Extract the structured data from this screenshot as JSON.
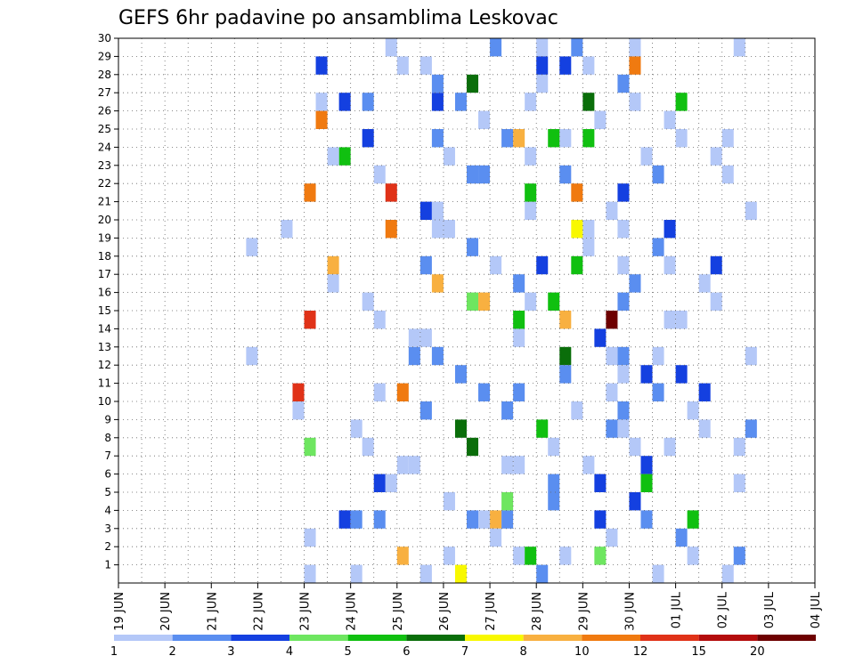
{
  "title": "GEFS 6hr padavine po ansamblima Leskovac",
  "chart_data": {
    "type": "heatmap",
    "title": "GEFS 6hr padavine po ansamblima Leskovac",
    "xlabel": "",
    "ylabel": "",
    "x_tick_labels": [
      "19 JUN",
      "20 JUN",
      "21 JUN",
      "22 JUN",
      "23 JUN",
      "24 JUN",
      "25 JUN",
      "26 JUN",
      "27 JUN",
      "28 JUN",
      "29 JUN",
      "30 JUN",
      "01 JUL",
      "02 JUL",
      "03 JUL",
      "04 JUL"
    ],
    "y_tick_labels": [
      "1",
      "2",
      "3",
      "4",
      "5",
      "6",
      "7",
      "8",
      "9",
      "10",
      "11",
      "12",
      "13",
      "14",
      "15",
      "16",
      "17",
      "18",
      "19",
      "20",
      "21",
      "22",
      "23",
      "24",
      "25",
      "26",
      "27",
      "28",
      "29",
      "30"
    ],
    "x_range": [
      "19 JUN 00Z",
      "04 JUL 00Z"
    ],
    "x_step": "6 hr",
    "members": 30,
    "grid": true,
    "colorbar": {
      "labels": [
        "1",
        "2",
        "3",
        "4",
        "5",
        "6",
        "7",
        "8",
        "10",
        "12",
        "15",
        "20"
      ],
      "colors": [
        "#b4c8f8",
        "#5a8ef0",
        "#1440e0",
        "#6ee660",
        "#10c010",
        "#0a6e0a",
        "#f8f800",
        "#f8b040",
        "#f07a10",
        "#e03218",
        "#b40c0c",
        "#6e0000"
      ]
    },
    "cells_note": "each cell: [time step index from 19 JUN 00Z, member, precipitation class 0-11]",
    "cells": [
      [
        16,
        0,
        0
      ],
      [
        16,
        0,
        3
      ],
      [
        16,
        0,
        9
      ],
      [
        23,
        0,
        9
      ],
      [
        26,
        0,
        0
      ],
      [
        22,
        0,
        2
      ],
      [
        38,
        0,
        5
      ],
      [
        23,
        0,
        8
      ],
      [
        27,
        0,
        2
      ],
      [
        32,
        0,
        7
      ],
      [
        24,
        0,
        8
      ],
      [
        39,
        0,
        4
      ],
      [
        40,
        0,
        4
      ],
      [
        41,
        0,
        3
      ],
      [
        29,
        0,
        5
      ],
      [
        31,
        0,
        7
      ],
      [
        30,
        0,
        1
      ],
      [
        36,
        0,
        0
      ],
      [
        34,
        0,
        0
      ],
      [
        38,
        1,
        7
      ],
      [
        39,
        1,
        8
      ],
      [
        38,
        1,
        2
      ],
      [
        41,
        1,
        2
      ],
      [
        43,
        1,
        1
      ],
      [
        26,
        2,
        2
      ],
      [
        21,
        1,
        1
      ],
      [
        22,
        1,
        1
      ],
      [
        43,
        2,
        0
      ],
      [
        40,
        3,
        0
      ],
      [
        35,
        3,
        0
      ],
      [
        33,
        3,
        1
      ],
      [
        44,
        0,
        0
      ],
      [
        47,
        0,
        0
      ],
      [
        46,
        1,
        1
      ],
      [
        44,
        1,
        0
      ],
      [
        45,
        1,
        2
      ],
      [
        11,
        0,
        0
      ],
      [
        14,
        0,
        0
      ],
      [
        17,
        0,
        0
      ],
      [
        19,
        0,
        2
      ],
      [
        15,
        0,
        9
      ],
      [
        18,
        0,
        7
      ],
      [
        21,
        0,
        2
      ],
      [
        24,
        0,
        7
      ],
      [
        43,
        0,
        0
      ],
      [
        35,
        0,
        0
      ],
      [
        35,
        1,
        0
      ],
      [
        38,
        2,
        0
      ],
      [
        39,
        3,
        0
      ],
      [
        39,
        4,
        0
      ],
      [
        38,
        4,
        0
      ],
      [
        53,
        2,
        0
      ],
      [
        53,
        1,
        0
      ],
      [
        54,
        1,
        0
      ],
      [
        54,
        2,
        0
      ],
      [
        17,
        0,
        8
      ],
      [
        16,
        0,
        0
      ],
      [
        15,
        0,
        0
      ],
      [
        26,
        1,
        1
      ],
      [
        40,
        1,
        1
      ],
      [
        53,
        1,
        1
      ],
      [
        54,
        1,
        1
      ],
      [
        18,
        2,
        0
      ],
      [
        19,
        2,
        4
      ],
      [
        20,
        2,
        0
      ],
      [
        21,
        2,
        0
      ],
      [
        22,
        2,
        0
      ],
      [
        23,
        2,
        3
      ],
      [
        24,
        2,
        0
      ],
      [
        25,
        3,
        0
      ],
      [
        26,
        3,
        0
      ],
      [
        27,
        3,
        0
      ],
      [
        30,
        3,
        5
      ],
      [
        33,
        3,
        3
      ],
      [
        48,
        3,
        2
      ],
      [
        11,
        3,
        0
      ],
      [
        19,
        4,
        2
      ],
      [
        20,
        4,
        1
      ],
      [
        22,
        4,
        0
      ],
      [
        26,
        4,
        1
      ],
      [
        27,
        4,
        1
      ],
      [
        28,
        4,
        0
      ],
      [
        29,
        4,
        1
      ],
      [
        30,
        4,
        3
      ],
      [
        31,
        4,
        1
      ],
      [
        32,
        4,
        1
      ],
      [
        33,
        4,
        0
      ],
      [
        34,
        4,
        0
      ],
      [
        35,
        4,
        0
      ],
      [
        36,
        4,
        0
      ],
      [
        37,
        4,
        1
      ],
      [
        38,
        4,
        1
      ],
      [
        40,
        4,
        0
      ],
      [
        41,
        4,
        0
      ],
      [
        42,
        4,
        0
      ],
      [
        43,
        4,
        1
      ],
      [
        44,
        4,
        1
      ],
      [
        45,
        4,
        0
      ],
      [
        46,
        4,
        0
      ],
      [
        47,
        4,
        0
      ],
      [
        48,
        4,
        0
      ],
      [
        16,
        4,
        8
      ],
      [
        17,
        4,
        2
      ],
      [
        23,
        4,
        0
      ],
      [
        25,
        4,
        1
      ],
      [
        27,
        4,
        0
      ],
      [
        29,
        4,
        1
      ],
      [
        31,
        4,
        0
      ],
      [
        34,
        4,
        1
      ],
      [
        36,
        4,
        2
      ],
      [
        37,
        4,
        4
      ],
      [
        41,
        4,
        0
      ],
      [
        42,
        4,
        1
      ],
      [
        43,
        4,
        1
      ],
      [
        18,
        5,
        0
      ],
      [
        26,
        5,
        0
      ],
      [
        37,
        5,
        0
      ],
      [
        38,
        5,
        0
      ],
      [
        39,
        5,
        0
      ],
      [
        40,
        5,
        0
      ],
      [
        41,
        5,
        2
      ],
      [
        27,
        5,
        1
      ],
      [
        28,
        5,
        0
      ],
      [
        29,
        5,
        2
      ],
      [
        30,
        5,
        1
      ],
      [
        31,
        5,
        1
      ],
      [
        32,
        5,
        0
      ],
      [
        33,
        5,
        1
      ],
      [
        34,
        5,
        0
      ],
      [
        26,
        6,
        1
      ],
      [
        27,
        6,
        7
      ],
      [
        28,
        6,
        0
      ],
      [
        29,
        6,
        6
      ],
      [
        30,
        6,
        5
      ],
      [
        34,
        6,
        4
      ],
      [
        35,
        6,
        4
      ],
      [
        36,
        6,
        2
      ],
      [
        37,
        6,
        1
      ],
      [
        38,
        6,
        0
      ],
      [
        39,
        6,
        6
      ],
      [
        40,
        6,
        5
      ],
      [
        41,
        6,
        2
      ],
      [
        42,
        6,
        0
      ],
      [
        43,
        6,
        0
      ],
      [
        34,
        6,
        7
      ],
      [
        35,
        6,
        4
      ],
      [
        36,
        6,
        4
      ],
      [
        37,
        6,
        4
      ],
      [
        38,
        6,
        1
      ],
      [
        39,
        6,
        1
      ],
      [
        40,
        6,
        0
      ],
      [
        41,
        6,
        2
      ],
      [
        42,
        6,
        0
      ],
      [
        43,
        6,
        1
      ],
      [
        44,
        6,
        2
      ],
      [
        45,
        6,
        2
      ],
      [
        46,
        6,
        1
      ],
      [
        47,
        6,
        0
      ],
      [
        48,
        6,
        1
      ],
      [
        49,
        6,
        0
      ],
      [
        50,
        6,
        0
      ],
      [
        51,
        6,
        0
      ],
      [
        52,
        6,
        0
      ],
      [
        53,
        6,
        0
      ],
      [
        42,
        6,
        11
      ],
      [
        43,
        6,
        2
      ],
      [
        44,
        6,
        8
      ],
      [
        45,
        6,
        4
      ],
      [
        46,
        6,
        0
      ],
      [
        47,
        6,
        2
      ],
      [
        48,
        6,
        4
      ],
      [
        49,
        6,
        4
      ],
      [
        50,
        6,
        2
      ],
      [
        51,
        6,
        2
      ],
      [
        52,
        6,
        0
      ],
      [
        53,
        6,
        0
      ],
      [
        20,
        6,
        0
      ],
      [
        21,
        6,
        0
      ],
      [
        22,
        6,
        0
      ],
      [
        23,
        6,
        0
      ],
      [
        24,
        6,
        0
      ],
      [
        25,
        6,
        0
      ],
      [
        26,
        6,
        1
      ],
      [
        27,
        6,
        1
      ],
      [
        28,
        6,
        0
      ],
      [
        29,
        6,
        1
      ],
      [
        30,
        6,
        1
      ],
      [
        31,
        6,
        0
      ],
      [
        32,
        6,
        0
      ],
      [
        33,
        6,
        1
      ],
      [
        34,
        6,
        1
      ],
      [
        35,
        6,
        0
      ],
      [
        36,
        6,
        1
      ],
      [
        37,
        6,
        1
      ],
      [
        38,
        6,
        1
      ],
      [
        39,
        6,
        0
      ],
      [
        40,
        6,
        0
      ],
      [
        41,
        6,
        0
      ],
      [
        42,
        6,
        0
      ],
      [
        43,
        6,
        0
      ],
      [
        44,
        6,
        0
      ],
      [
        45,
        6,
        1
      ],
      [
        46,
        6,
        1
      ],
      [
        47,
        6,
        0
      ],
      [
        48,
        6,
        0
      ],
      [
        49,
        6,
        0
      ],
      [
        50,
        6,
        0
      ],
      [
        51,
        6,
        0
      ],
      [
        52,
        6,
        0
      ],
      [
        53,
        6,
        0
      ]
    ]
  }
}
